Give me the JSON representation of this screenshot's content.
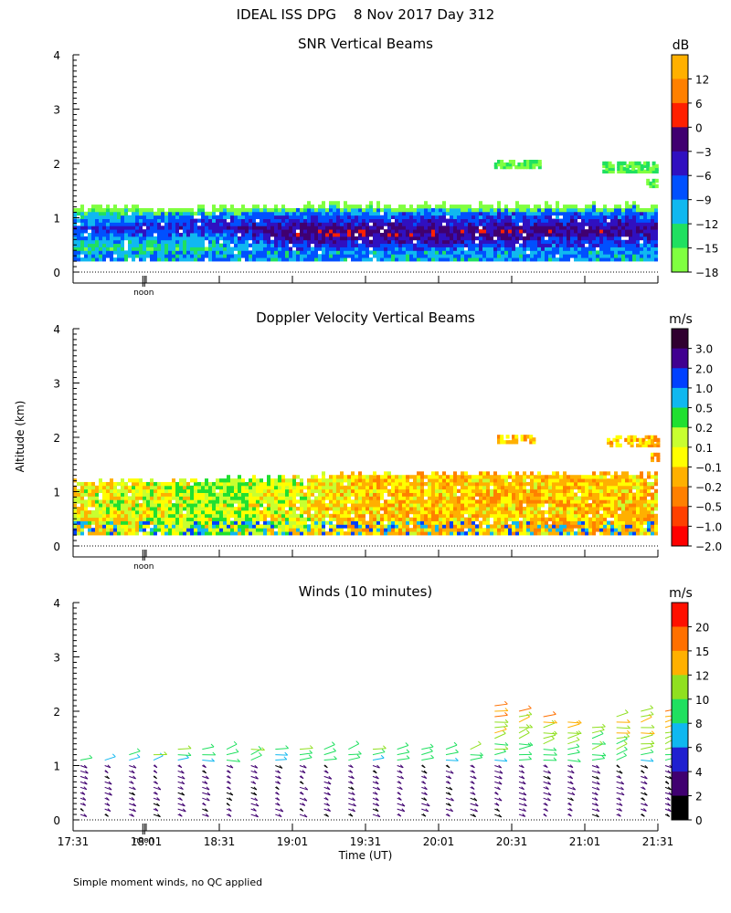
{
  "header": {
    "title": "IDEAL ISS DPG    8 Nov 2017 Day 312"
  },
  "footer": {
    "note": "Simple moment winds, no QC applied"
  },
  "colors": {
    "snr_scale": [
      "#80ff40",
      "#20e060",
      "#10b8f0",
      "#0050ff",
      "#3010c0",
      "#400070",
      "#ff2000",
      "#ff8000",
      "#ffb000"
    ],
    "vel_scale": [
      "#ff0000",
      "#ff4000",
      "#ff8000",
      "#ffb000",
      "#ffff00",
      "#c8ff30",
      "#20e030",
      "#10b8f0",
      "#0040ff",
      "#400090",
      "#300030"
    ],
    "wind_scale": [
      "#000000",
      "#400070",
      "#2020d0",
      "#10b8f0",
      "#20e060",
      "#90e020",
      "#ffb000",
      "#ff7000",
      "#ff1000"
    ]
  },
  "chart_data": [
    {
      "type": "heatmap",
      "title": "SNR Vertical Beams",
      "ylabel": "",
      "xlabel": "",
      "ylim": [
        0,
        4
      ],
      "yticks": [
        "0",
        "1",
        "2",
        "3",
        "4"
      ],
      "noon_marker": "noon",
      "colorbar": {
        "unit": "dB",
        "labels": [
          "12",
          "6",
          "0",
          "−3",
          "−6",
          "−9",
          "−12",
          "−15",
          "−18"
        ]
      },
      "time_range": [
        "17:31",
        "21:31"
      ],
      "profile": [
        {
          "time_h": 0.0,
          "top_km": 1.15,
          "core_km": 0.75,
          "core_db": -6
        },
        {
          "time_h": 1.0,
          "top_km": 1.15,
          "core_km": 0.8,
          "core_db": -4
        },
        {
          "time_h": 1.5,
          "top_km": 1.2,
          "core_km": 0.7,
          "core_db": 0
        },
        {
          "time_h": 2.5,
          "top_km": 1.2,
          "core_km": 0.7,
          "core_db": 0
        },
        {
          "time_h": 4.0,
          "top_km": 1.2,
          "core_km": 0.75,
          "core_db": -1
        }
      ]
    },
    {
      "type": "heatmap",
      "title": "Doppler Velocity Vertical Beams",
      "ylabel": "Altitude (km)",
      "xlabel": "",
      "ylim": [
        0,
        4
      ],
      "yticks": [
        "0",
        "1",
        "2",
        "3",
        "4"
      ],
      "noon_marker": "noon",
      "colorbar": {
        "unit": "m/s",
        "labels": [
          "3.0",
          "2.0",
          "1.0",
          "0.5",
          "0.2",
          "0.1",
          "−0.1",
          "−0.2",
          "−0.5",
          "−1.0",
          "−2.0"
        ]
      },
      "time_range": [
        "17:31",
        "21:31"
      ],
      "profile": [
        {
          "time_h": 0.0,
          "top_km": 1.15,
          "mean_ms": -0.1
        },
        {
          "time_h": 1.0,
          "top_km": 1.2,
          "mean_ms": 0.1
        },
        {
          "time_h": 2.0,
          "top_km": 1.3,
          "mean_ms": -0.2
        },
        {
          "time_h": 3.0,
          "top_km": 1.3,
          "mean_ms": -0.2
        },
        {
          "time_h": 4.0,
          "top_km": 1.3,
          "mean_ms": -0.2
        }
      ]
    },
    {
      "type": "scatter",
      "title": "Winds (10 minutes)",
      "ylabel": "",
      "xlabel": "Time (UT)",
      "ylim": [
        0,
        4
      ],
      "yticks": [
        "0",
        "1",
        "2",
        "3",
        "4"
      ],
      "xticks": [
        "17:31",
        "18:01",
        "18:31",
        "19:01",
        "19:31",
        "20:01",
        "20:31",
        "21:01",
        "21:31"
      ],
      "noon_marker": "noon",
      "colorbar": {
        "unit": "m/s",
        "labels": [
          "20",
          "15",
          "12",
          "10",
          "8",
          "6",
          "4",
          "2",
          "0"
        ]
      },
      "profiles_per_hour": 6,
      "top_altitude_km": [
        1.15,
        1.15,
        1.2,
        1.25,
        1.3,
        1.35,
        1.4,
        1.35,
        1.3,
        1.3,
        1.35,
        1.3,
        1.35,
        1.3,
        1.3,
        1.35,
        1.4,
        2.15,
        2.05,
        2.0,
        1.9,
        1.8,
        2.0,
        2.05,
        2.05
      ]
    }
  ]
}
